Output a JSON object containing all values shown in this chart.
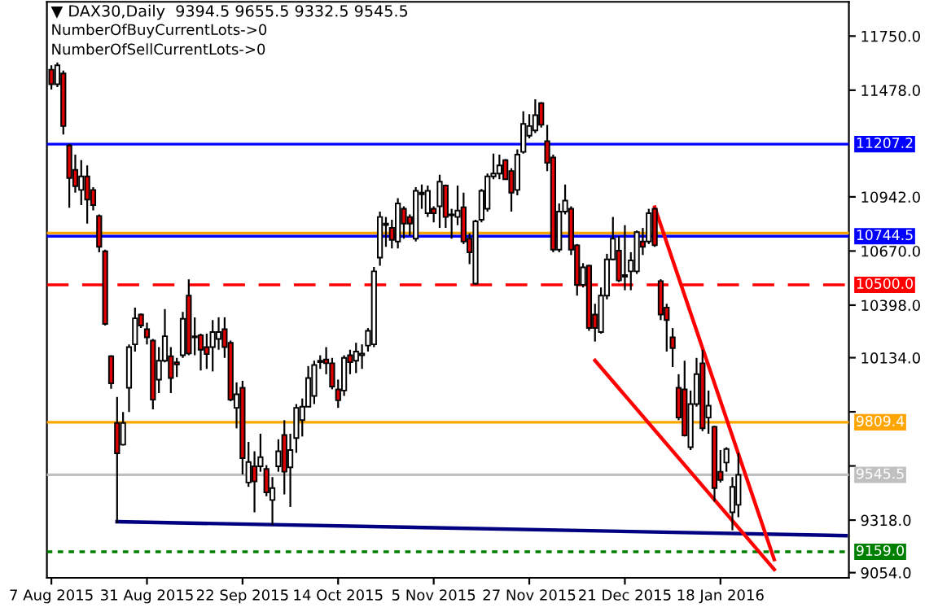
{
  "chart_data": {
    "type": "candlestick",
    "title": "▼ DAX30,Daily  9394.5 9655.5 9332.5 9545.5",
    "annotations": [
      "NumberOfBuyCurrentLots->0",
      "NumberOfSellCurrentLots->0"
    ],
    "colors": [
      "#e00000",
      "#ffffff",
      "#e00000",
      "#e00000",
      "#e00000",
      "#ffffff",
      "#e00000",
      "#e00000",
      "#e00000",
      "#e00000",
      "#e00000",
      "#e00000",
      "#ffffff",
      "#ffffff",
      "#ffffff",
      "#e00000",
      "#e00000",
      "#e00000",
      "#ffffff",
      "#ffffff",
      "#e00000",
      "#e00000",
      "#ffffff",
      "#e00000",
      "#e00000",
      "#e00000",
      "#e00000",
      "#ffffff",
      "#ffffff",
      "#e00000",
      "#e00000",
      "#ffffff",
      "#e00000",
      "#ffffff",
      "#e00000",
      "#ffffff",
      "#e00000",
      "#ffffff",
      "#ffffff",
      "#e00000",
      "#ffffff",
      "#ffffff",
      "#ffffff",
      "#ffffff",
      "#ffffff",
      "#ffffff",
      "#e00000",
      "#e00000",
      "#e00000",
      "#ffffff",
      "#e00000",
      "#ffffff",
      "#ffffff",
      "#ffffff",
      "#ffffff",
      "#ffffff",
      "#ffffff",
      "#e00000",
      "#ffffff",
      "#e00000",
      "#e00000",
      "#ffffff",
      "#e00000",
      "#ffffff",
      "#e00000",
      "#ffffff",
      "#e00000",
      "#e00000",
      "#ffffff",
      "#e00000",
      "#e00000",
      "#ffffff",
      "#ffffff",
      "#ffffff",
      "#ffffff",
      "#ffffff",
      "#e00000",
      "#e00000",
      "#ffffff",
      "#ffffff",
      "#ffffff",
      "#ffffff",
      "#e00000",
      "#e00000",
      "#e00000",
      "#ffffff",
      "#ffffff",
      "#e00000",
      "#e00000",
      "#ffffff",
      "#e00000",
      "#e00000",
      "#ffffff",
      "#ffffff",
      "#ffffff",
      "#e00000",
      "#e00000",
      "#ffffff",
      "#ffffff",
      "#e00000",
      "#ffffff",
      "#e00000",
      "#e00000",
      "#e00000",
      "#e00000",
      "#e00000",
      "#e00000",
      "#ffffff",
      "#ffffff",
      "#e00000",
      "#ffffff",
      "#e00000",
      "#e00000",
      "#ffffff",
      "#ffffff",
      "#ffffff",
      null,
      null,
      null,
      null,
      null,
      null,
      null,
      null,
      null,
      null,
      null,
      null,
      null,
      null,
      null,
      null,
      null,
      null
    ],
    "categories": [
      "7 Aug 2015",
      null,
      null,
      null,
      null,
      null,
      null,
      null,
      null,
      null,
      null,
      null,
      null,
      null,
      null,
      null,
      "31 Aug 2015",
      null,
      null,
      null,
      null,
      null,
      null,
      null,
      null,
      null,
      null,
      null,
      null,
      null,
      null,
      null,
      "22 Sep 2015",
      null,
      null,
      null,
      null,
      null,
      null,
      null,
      null,
      null,
      null,
      null,
      null,
      null,
      null,
      null,
      "14 Oct 2015",
      null,
      null,
      null,
      null,
      null,
      null,
      null,
      null,
      null,
      null,
      null,
      null,
      null,
      null,
      null,
      "5 Nov 2015",
      null,
      null,
      null,
      null,
      null,
      null,
      null,
      null,
      null,
      null,
      null,
      null,
      null,
      null,
      null,
      "27 Nov 2015",
      null,
      null,
      null,
      null,
      null,
      null,
      null,
      null,
      null,
      null,
      null,
      null,
      null,
      null,
      null,
      "21 Dec 2015",
      null,
      null,
      null,
      null,
      null,
      null,
      null,
      null,
      null,
      null,
      null,
      null,
      null,
      null,
      null,
      "18 Jan 2016",
      null,
      null,
      null,
      null,
      null,
      null,
      null,
      null,
      null,
      null,
      null,
      null,
      null,
      null,
      null,
      null,
      null,
      null,
      null,
      null,
      null
    ],
    "ohlc": [
      [
        11581,
        11603,
        11481,
        11508
      ],
      [
        11508,
        11617,
        11494,
        11603
      ],
      [
        11562,
        11576,
        11255,
        11298
      ],
      [
        11200,
        11208,
        10887,
        11037
      ],
      [
        11078,
        11154,
        10963,
        10996
      ],
      [
        10977,
        11127,
        10901,
        11045
      ],
      [
        11045,
        11100,
        10808,
        10928
      ],
      [
        10977,
        10991,
        10874,
        10901
      ],
      [
        10846,
        10854,
        10664,
        10691
      ],
      [
        10669,
        10677,
        10296,
        10304
      ],
      [
        10141,
        10146,
        9978,
        10005
      ],
      [
        9806,
        9937,
        9302,
        9654
      ],
      [
        9697,
        9861,
        9692,
        9806
      ],
      [
        9983,
        10201,
        9861,
        10187
      ],
      [
        10201,
        10386,
        10165,
        10332
      ],
      [
        10351,
        10356,
        10283,
        10296
      ],
      [
        10277,
        10310,
        10201,
        10236
      ],
      [
        10220,
        10228,
        9874,
        9923
      ],
      [
        10024,
        10187,
        9956,
        10119
      ],
      [
        10119,
        10378,
        10111,
        10242
      ],
      [
        10141,
        10187,
        9956,
        10032
      ],
      [
        10111,
        10133,
        10037,
        10100
      ],
      [
        10146,
        10364,
        10133,
        10329
      ],
      [
        10446,
        10528,
        10146,
        10155
      ],
      [
        10242,
        10337,
        10146,
        10236
      ],
      [
        10247,
        10255,
        10070,
        10174
      ],
      [
        10187,
        10255,
        10078,
        10152
      ],
      [
        10187,
        10323,
        10065,
        10263
      ],
      [
        10228,
        10337,
        10174,
        10263
      ],
      [
        10277,
        10337,
        10133,
        10187
      ],
      [
        10209,
        10220,
        9915,
        9923
      ],
      [
        9882,
        10010,
        9779,
        9950
      ],
      [
        9983,
        10018,
        9547,
        9629
      ],
      [
        9507,
        9711,
        9485,
        9610
      ],
      [
        9588,
        9664,
        9357,
        9512
      ],
      [
        9588,
        9752,
        9561,
        9634
      ],
      [
        9575,
        9594,
        9438,
        9457
      ],
      [
        9419,
        9534,
        9294,
        9479
      ],
      [
        9588,
        9724,
        9561,
        9664
      ],
      [
        9746,
        9820,
        9447,
        9561
      ],
      [
        9583,
        9752,
        9384,
        9670
      ],
      [
        9730,
        9901,
        9656,
        9882
      ],
      [
        9820,
        9929,
        9738,
        9888
      ],
      [
        9888,
        10092,
        9888,
        10032
      ],
      [
        9942,
        10119,
        9901,
        10097
      ],
      [
        10111,
        10146,
        10078,
        10119
      ],
      [
        10125,
        10187,
        10051,
        10106
      ],
      [
        10106,
        10133,
        9975,
        9989
      ],
      [
        9975,
        10024,
        9882,
        9920
      ],
      [
        9969,
        10146,
        9942,
        10133
      ],
      [
        10146,
        10174,
        10051,
        10111
      ],
      [
        10119,
        10209,
        10057,
        10165
      ],
      [
        10146,
        10201,
        10078,
        10155
      ],
      [
        10195,
        10283,
        10165,
        10269
      ],
      [
        10201,
        10590,
        10187,
        10568
      ],
      [
        10637,
        10868,
        10596,
        10841
      ],
      [
        10800,
        10841,
        10691,
        10808
      ],
      [
        10786,
        10827,
        10683,
        10726
      ],
      [
        10718,
        10936,
        10683,
        10909
      ],
      [
        10882,
        10895,
        10732,
        10808
      ],
      [
        10841,
        10854,
        10745,
        10808
      ],
      [
        10732,
        10991,
        10718,
        10972
      ],
      [
        10963,
        11004,
        10882,
        10955
      ],
      [
        10860,
        10999,
        10841,
        10972
      ],
      [
        10882,
        10895,
        10814,
        10860
      ],
      [
        10895,
        11053,
        10786,
        11018
      ],
      [
        10999,
        11004,
        10786,
        10841
      ],
      [
        10854,
        10882,
        10732,
        10849
      ],
      [
        10841,
        10999,
        10800,
        10873
      ],
      [
        10890,
        10963,
        10705,
        10718
      ],
      [
        10732,
        10759,
        10604,
        10664
      ],
      [
        10506,
        10827,
        10500,
        10819
      ],
      [
        10827,
        10982,
        10814,
        10972
      ],
      [
        10882,
        11059,
        10868,
        11045
      ],
      [
        11045,
        11159,
        11031,
        11059
      ],
      [
        11059,
        11154,
        11031,
        11100
      ],
      [
        11127,
        11132,
        11031,
        11031
      ],
      [
        11072,
        11086,
        10868,
        10963
      ],
      [
        10977,
        11181,
        10950,
        11154
      ],
      [
        11168,
        11372,
        11159,
        11309
      ],
      [
        11249,
        11358,
        11236,
        11298
      ],
      [
        11276,
        11432,
        11263,
        11353
      ],
      [
        11413,
        11418,
        11290,
        11304
      ],
      [
        11222,
        11304,
        11072,
        11113
      ],
      [
        11140,
        11154,
        10664,
        10677
      ],
      [
        10677,
        10909,
        10664,
        10868
      ],
      [
        10868,
        11004,
        10854,
        10923
      ],
      [
        10882,
        10895,
        10650,
        10677
      ],
      [
        10699,
        10705,
        10446,
        10500
      ],
      [
        10500,
        10609,
        10487,
        10588
      ],
      [
        10596,
        10601,
        10269,
        10283
      ],
      [
        10351,
        10405,
        10215,
        10283
      ],
      [
        10263,
        10487,
        10255,
        10446
      ],
      [
        10446,
        10656,
        10427,
        10628
      ],
      [
        10628,
        10841,
        10623,
        10732
      ],
      [
        10672,
        10745,
        10514,
        10522
      ],
      [
        10549,
        10800,
        10473,
        10541
      ],
      [
        10568,
        10664,
        10473,
        10623
      ],
      [
        10568,
        10773,
        10555,
        10765
      ],
      [
        10718,
        10786,
        10650,
        10691
      ],
      [
        10718,
        10882,
        10705,
        10860
      ],
      [
        10882,
        10887,
        10691,
        10699
      ],
      [
        10519,
        10528,
        10323,
        10351
      ],
      [
        10386,
        10405,
        10165,
        10323
      ],
      [
        10236,
        10283,
        10087,
        10182
      ],
      [
        9983,
        10051,
        9820,
        9833
      ],
      [
        9975,
        10119,
        9738,
        9743
      ],
      [
        9684,
        9969,
        9670,
        9901
      ],
      [
        9901,
        10133,
        9888,
        10051
      ],
      [
        10106,
        10174,
        9765,
        9779
      ],
      [
        9833,
        9969,
        9752,
        9893
      ],
      [
        9787,
        9792,
        9411,
        9479
      ],
      [
        9561,
        9670,
        9507,
        9520
      ],
      [
        9607,
        9684,
        9561,
        9675
      ],
      [
        9357,
        9534,
        9267,
        9485
      ],
      [
        9394.5,
        9655.5,
        9332.5,
        9545.5
      ],
      null,
      null,
      null,
      null,
      null,
      null,
      null,
      null,
      null,
      null,
      null,
      null,
      null,
      null,
      null,
      null,
      null,
      null
    ],
    "series": [
      {
        "type": "line",
        "color": "#000080",
        "values": [
          null,
          null,
          null,
          null,
          null,
          null,
          null,
          null,
          null,
          null,
          null,
          9310,
          null,
          null,
          null,
          null,
          null,
          null,
          null,
          null,
          null,
          null,
          null,
          null,
          null,
          null,
          null,
          null,
          null,
          null,
          null,
          null,
          null,
          null,
          null,
          null,
          null,
          null,
          null,
          null,
          null,
          null,
          null,
          null,
          null,
          null,
          null,
          null,
          null,
          null,
          null,
          null,
          null,
          null,
          null,
          null,
          null,
          null,
          null,
          null,
          null,
          null,
          null,
          null,
          null,
          null,
          null,
          null,
          null,
          null,
          null,
          null,
          null,
          null,
          null,
          null,
          null,
          null,
          null,
          null,
          null,
          null,
          null,
          null,
          null,
          null,
          null,
          null,
          null,
          null,
          null,
          null,
          null,
          null,
          null,
          null,
          null,
          null,
          null,
          null,
          null,
          null,
          null,
          null,
          null,
          null,
          null,
          null,
          null,
          null,
          null,
          null,
          null,
          null,
          null,
          null,
          null,
          null,
          null,
          null,
          null,
          null,
          null,
          null,
          null,
          null,
          null,
          null,
          null,
          null,
          null,
          null,
          null,
          9240
        ]
      },
      {
        "type": "line",
        "color": "#ff0000",
        "values": [
          null,
          null,
          null,
          null,
          null,
          null,
          null,
          null,
          null,
          null,
          null,
          null,
          null,
          null,
          null,
          null,
          null,
          null,
          null,
          null,
          null,
          null,
          null,
          null,
          null,
          null,
          null,
          null,
          null,
          null,
          null,
          null,
          null,
          null,
          null,
          null,
          null,
          null,
          null,
          null,
          null,
          null,
          null,
          null,
          null,
          null,
          null,
          null,
          null,
          null,
          null,
          null,
          null,
          null,
          null,
          null,
          null,
          null,
          null,
          null,
          null,
          null,
          null,
          null,
          null,
          null,
          null,
          null,
          null,
          null,
          null,
          null,
          null,
          null,
          null,
          null,
          null,
          null,
          null,
          null,
          null,
          null,
          null,
          null,
          null,
          null,
          null,
          null,
          null,
          null,
          null,
          10120,
          null,
          null,
          null,
          null,
          null,
          null,
          null,
          null,
          null,
          null,
          null,
          null,
          null,
          null,
          null,
          null,
          null,
          null,
          null,
          null,
          null,
          null,
          null,
          null,
          null,
          null,
          null,
          null,
          null,
          9070,
          null,
          null,
          null,
          null,
          null,
          null,
          null,
          null,
          null,
          null,
          null,
          null
        ]
      },
      {
        "type": "line",
        "color": "#ff0000",
        "values": [
          null,
          null,
          null,
          null,
          null,
          null,
          null,
          null,
          null,
          null,
          null,
          null,
          null,
          null,
          null,
          null,
          null,
          null,
          null,
          null,
          null,
          null,
          null,
          null,
          null,
          null,
          null,
          null,
          null,
          null,
          null,
          null,
          null,
          null,
          null,
          null,
          null,
          null,
          null,
          null,
          null,
          null,
          null,
          null,
          null,
          null,
          null,
          null,
          null,
          null,
          null,
          null,
          null,
          null,
          null,
          null,
          null,
          null,
          null,
          null,
          null,
          null,
          null,
          null,
          null,
          null,
          null,
          null,
          null,
          null,
          null,
          null,
          null,
          null,
          null,
          null,
          null,
          null,
          null,
          null,
          null,
          null,
          null,
          null,
          null,
          null,
          null,
          null,
          null,
          null,
          null,
          null,
          null,
          null,
          null,
          null,
          null,
          null,
          null,
          null,
          null,
          10890,
          null,
          null,
          null,
          null,
          null,
          null,
          null,
          null,
          null,
          null,
          null,
          null,
          null,
          null,
          null,
          null,
          null,
          null,
          null,
          9120,
          null,
          null,
          null,
          null,
          null,
          null,
          null,
          null,
          null,
          null,
          null,
          null
        ]
      }
    ],
    "ref_lines": [
      {
        "axis": "y",
        "value": 11207.2,
        "label": "11207.2",
        "color": "#0000ff",
        "line_style": "solid"
      },
      {
        "axis": "y",
        "value": 10760,
        "label": null,
        "color": "#ffa500",
        "line_style": "solid"
      },
      {
        "axis": "y",
        "value": 10744.5,
        "label": "10744.5",
        "color": "#0000ff",
        "line_style": "solid"
      },
      {
        "axis": "y",
        "value": 10500,
        "label": "10500.0",
        "color": "#ff0000",
        "line_style": "dashed"
      },
      {
        "axis": "y",
        "value": 9809.4,
        "label": "9809.4",
        "color": "#ffa500",
        "line_style": "solid"
      },
      {
        "axis": "y",
        "value": 9545.5,
        "label": "9545.5",
        "color": "#c0c0c0",
        "line_style": "solid"
      },
      {
        "axis": "y",
        "value": 9159,
        "label": "9159.0",
        "color": "#008000",
        "line_style": "dotted"
      }
    ],
    "ylim": [
      9028,
      11922
    ],
    "yticks": [
      {
        "value": 9054,
        "label": "9054.0"
      },
      {
        "value": 9318,
        "label": "9318.0"
      },
      {
        "value": 9590,
        "label": null
      },
      {
        "value": 9862,
        "label": null
      },
      {
        "value": 10134,
        "label": "10134.0"
      },
      {
        "value": 10398,
        "label": "10398.0"
      },
      {
        "value": 10670,
        "label": "10670.0"
      },
      {
        "value": 10942,
        "label": "10942.0"
      },
      {
        "value": 11478,
        "label": "11478.0"
      },
      {
        "value": 11750,
        "label": "11750.0"
      }
    ],
    "grid": false,
    "legend": false
  }
}
